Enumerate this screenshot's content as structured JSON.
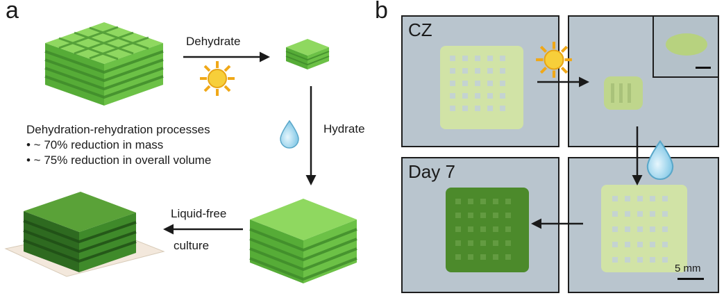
{
  "panel_a": {
    "letter": "a",
    "dehydrate_label": "Dehydrate",
    "hydrate_label": "Hydrate",
    "liquid_free_label": "Liquid-free",
    "culture_label": "culture",
    "notes": {
      "heading": "Dehydration-rehydration processes",
      "mass": "• ~ 70% reduction in mass",
      "volume": "• ~ 75% reduction in overall volume"
    }
  },
  "panel_b": {
    "letter": "b",
    "label_cz": "CZ",
    "label_day7": "Day 7",
    "scale_bar": "5 mm"
  },
  "colors": {
    "lattice_light": "#7ccf52",
    "lattice_mid": "#54a936",
    "lattice_dark": "#2f6e22",
    "photo_bg": "#b9c5ce",
    "gel_pale": "#cfe0a4",
    "gel_dark": "#4f8a2c",
    "sun": "#f5c22a",
    "drop": "#a9d9ee"
  },
  "icons": [
    "sun-icon",
    "water-drop-icon",
    "arrow-icon"
  ]
}
